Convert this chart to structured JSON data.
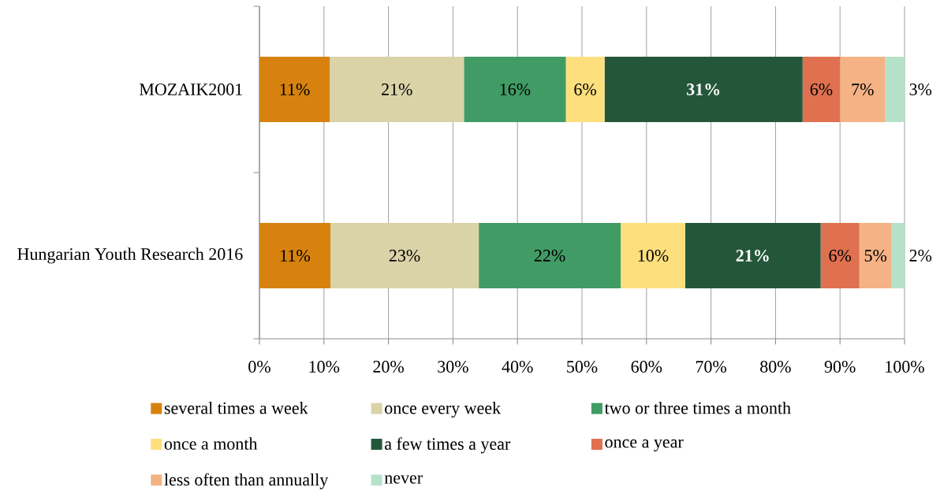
{
  "chart_data": {
    "type": "bar",
    "orientation": "horizontal",
    "stacked": true,
    "categories": [
      "MOZAIK2001",
      "Hungarian Youth Research 2016"
    ],
    "series": [
      {
        "name": "several times a week",
        "color": "#d7820f",
        "values": [
          10.9,
          11
        ],
        "value_labels": [
          "11%",
          "11%"
        ]
      },
      {
        "name": "once every week",
        "color": "#d9d3a7",
        "values": [
          20.8,
          23
        ],
        "value_labels": [
          "21%",
          "23%"
        ]
      },
      {
        "name": "two or three times a month",
        "color": "#419b65",
        "values": [
          15.8,
          22
        ],
        "value_labels": [
          "16%",
          "22%"
        ]
      },
      {
        "name": "once a month",
        "color": "#fedf7e",
        "values": [
          6.0,
          10
        ],
        "value_labels": [
          "6%",
          "10%"
        ]
      },
      {
        "name": "a few times a year",
        "color": "#24573a",
        "values": [
          30.7,
          21
        ],
        "value_labels": [
          "31%",
          "21%"
        ]
      },
      {
        "name": "once a year",
        "color": "#df7050",
        "values": [
          5.8,
          6
        ],
        "value_labels": [
          "6%",
          "6%"
        ]
      },
      {
        "name": "less often than annually",
        "color": "#f4b285",
        "values": [
          7.0,
          5
        ],
        "value_labels": [
          "7%",
          "5%"
        ]
      },
      {
        "name": "never",
        "color": "#b6e1c9",
        "values": [
          3.0,
          2
        ],
        "value_labels": [
          "3%",
          "2%"
        ]
      }
    ],
    "xlim": [
      0,
      100
    ],
    "xticks": [
      {
        "value": 0,
        "label": "0%"
      },
      {
        "value": 10,
        "label": "10%"
      },
      {
        "value": 20,
        "label": "20%"
      },
      {
        "value": 30,
        "label": "30%"
      },
      {
        "value": 40,
        "label": "40%"
      },
      {
        "value": 50,
        "label": "50%"
      },
      {
        "value": 60,
        "label": "60%"
      },
      {
        "value": 70,
        "label": "70%"
      },
      {
        "value": 80,
        "label": "80%"
      },
      {
        "value": 90,
        "label": "90%"
      },
      {
        "value": 100,
        "label": "100%"
      }
    ],
    "grid": "x",
    "legend": "bottom"
  }
}
